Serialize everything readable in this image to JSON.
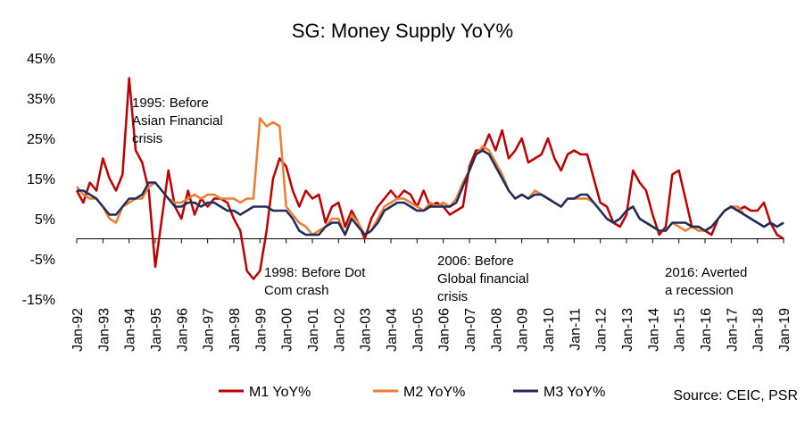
{
  "chart_data": {
    "type": "line",
    "title": "SG: Money Supply YoY%",
    "source": "Source: CEIC, PSR",
    "categories": [
      "Jan-92",
      null,
      null,
      null,
      "Jan-93",
      null,
      null,
      null,
      "Jan-94",
      null,
      null,
      null,
      "Jan-95",
      null,
      null,
      null,
      "Jan-96",
      null,
      null,
      null,
      "Jan-97",
      null,
      null,
      null,
      "Jan-98",
      null,
      null,
      null,
      "Jan-99",
      null,
      null,
      null,
      "Jan-00",
      null,
      null,
      null,
      "Jan-01",
      null,
      null,
      null,
      "Jan-02",
      null,
      null,
      null,
      "Jan-03",
      null,
      null,
      null,
      "Jan-04",
      null,
      null,
      null,
      "Jan-05",
      null,
      null,
      null,
      "Jan-06",
      null,
      null,
      null,
      "Jan-07",
      null,
      null,
      null,
      "Jan-08",
      null,
      null,
      null,
      "Jan-09",
      null,
      null,
      null,
      "Jan-10",
      null,
      null,
      null,
      "Jan-11",
      null,
      null,
      null,
      "Jan-12",
      null,
      null,
      null,
      "Jan-13",
      null,
      null,
      null,
      "Jan-14",
      null,
      null,
      null,
      "Jan-15",
      null,
      null,
      null,
      "Jan-16",
      null,
      null,
      null,
      "Jan-17",
      null,
      null,
      null,
      "Jan-18",
      null,
      null,
      null,
      "Jan-19"
    ],
    "series": [
      {
        "name": "M1 YoY%",
        "color": "#c00000",
        "values": [
          12,
          9,
          14,
          12,
          20,
          15,
          12,
          16,
          40,
          22,
          19,
          12,
          -7,
          5,
          17,
          8,
          5,
          12,
          6,
          10,
          8,
          10,
          10,
          9,
          5,
          2,
          -8,
          -10,
          -8,
          2,
          15,
          20,
          18,
          12,
          8,
          12,
          10,
          11,
          4,
          8,
          9,
          3,
          7,
          4,
          0,
          5,
          8,
          10,
          12,
          10,
          12,
          11,
          8,
          12,
          8,
          9,
          8,
          6,
          7,
          8,
          18,
          22,
          22,
          26,
          22,
          27,
          20,
          22,
          25,
          19,
          20,
          21,
          25,
          20,
          17,
          21,
          22,
          21,
          21,
          15,
          9,
          8,
          4,
          3,
          6,
          17,
          14,
          12,
          6,
          1,
          3,
          16,
          17,
          10,
          3,
          3,
          2,
          1,
          5,
          7,
          8,
          7,
          8,
          7,
          7,
          9,
          4,
          1,
          0
        ]
      },
      {
        "name": "M2 YoY%",
        "color": "#ed7d31",
        "values": [
          13,
          11,
          10,
          10,
          8,
          5,
          4,
          8,
          9,
          10,
          10,
          13,
          14,
          12,
          10,
          9,
          9,
          10,
          11,
          10,
          11,
          11,
          10,
          10,
          10,
          9,
          10,
          10,
          30,
          28,
          29,
          28,
          8,
          6,
          4,
          3,
          1,
          2,
          3,
          5,
          5,
          1,
          6,
          4,
          1,
          2,
          5,
          8,
          9,
          10,
          10,
          9,
          8,
          7,
          9,
          8,
          9,
          8,
          10,
          14,
          17,
          21,
          23,
          22,
          19,
          16,
          12,
          10,
          11,
          10,
          12,
          11,
          10,
          9,
          8,
          10,
          10,
          10,
          10,
          9,
          7,
          5,
          4,
          5,
          7,
          8,
          5,
          4,
          3,
          2,
          2,
          4,
          3,
          2,
          3,
          2,
          2,
          3,
          5,
          7,
          8,
          8,
          6,
          5,
          4,
          3,
          4,
          3,
          4
        ]
      },
      {
        "name": "M3 YoY%",
        "color": "#1f2d5c",
        "values": [
          12,
          12,
          11,
          10,
          8,
          6,
          6,
          8,
          10,
          10,
          11,
          14,
          14,
          12,
          10,
          8,
          8,
          9,
          9,
          8,
          9,
          9,
          8,
          7,
          7,
          6,
          7,
          8,
          8,
          8,
          7,
          7,
          7,
          5,
          2,
          1,
          1,
          1,
          3,
          4,
          4,
          1,
          5,
          3,
          1,
          2,
          4,
          7,
          8,
          9,
          9,
          8,
          7,
          7,
          8,
          8,
          8,
          8,
          9,
          13,
          17,
          21,
          22,
          21,
          18,
          15,
          12,
          10,
          11,
          10,
          11,
          11,
          10,
          9,
          8,
          10,
          10,
          11,
          11,
          9,
          7,
          5,
          4,
          5,
          7,
          8,
          5,
          4,
          3,
          2,
          2,
          4,
          4,
          4,
          3,
          3,
          2,
          3,
          5,
          7,
          8,
          7,
          6,
          5,
          4,
          3,
          4,
          3,
          4
        ]
      }
    ],
    "ylim": [
      -15,
      45
    ],
    "yticks": [
      {
        "value": -15,
        "label": "-15%"
      },
      {
        "value": -5,
        "label": "-5%"
      },
      {
        "value": 5,
        "label": "5%"
      },
      {
        "value": 15,
        "label": "15%"
      },
      {
        "value": 25,
        "label": "25%"
      },
      {
        "value": 35,
        "label": "35%"
      },
      {
        "value": 45,
        "label": "45%"
      }
    ],
    "annotations": [
      [
        "1995: Before",
        "Asian Financial",
        "crisis"
      ],
      [
        "1998: Before Dot",
        "Com crash"
      ],
      [
        "2006: Before",
        "Global financial",
        "crisis"
      ],
      [
        "2016: Averted",
        "a recession"
      ]
    ]
  }
}
